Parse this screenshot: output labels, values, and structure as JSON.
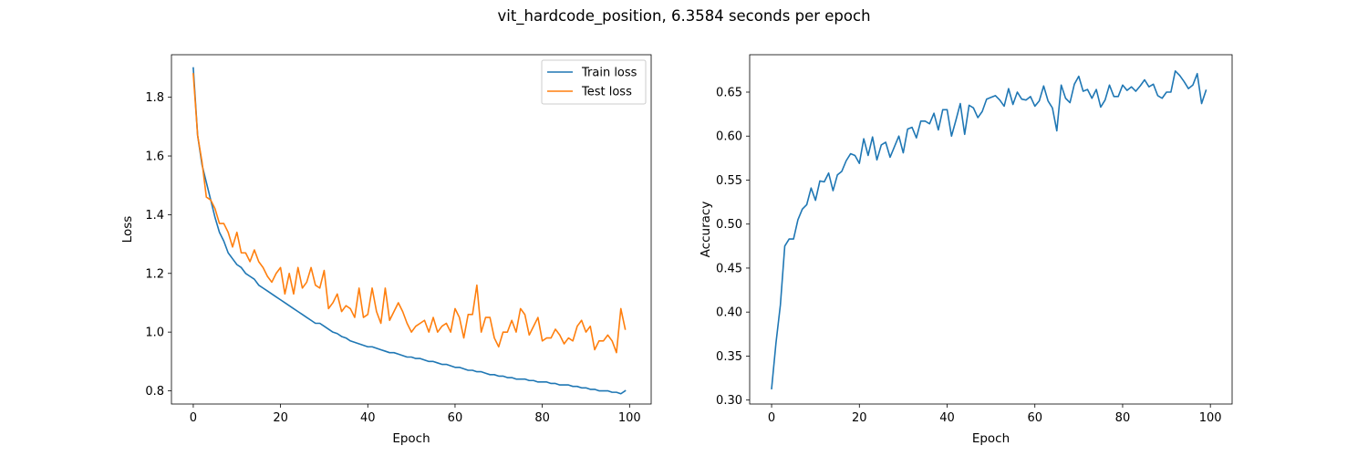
{
  "suptitle": "vit_hardcode_position, 6.3584 seconds per epoch",
  "colors": {
    "train": "#1f77b4",
    "test": "#ff7f0e",
    "acc": "#1f77b4"
  },
  "chart_data": [
    {
      "type": "line",
      "xlabel": "Epoch",
      "ylabel": "Loss",
      "xlim": [
        -5,
        104.95
      ],
      "ylim": [
        0.755,
        1.945
      ],
      "xticks": [
        0,
        20,
        40,
        60,
        80,
        100
      ],
      "yticks": [
        0.8,
        1.0,
        1.2,
        1.4,
        1.6,
        1.8
      ],
      "legend": "top-right",
      "x": [
        0,
        1,
        2,
        3,
        4,
        5,
        6,
        7,
        8,
        9,
        10,
        11,
        12,
        13,
        14,
        15,
        16,
        17,
        18,
        19,
        20,
        21,
        22,
        23,
        24,
        25,
        26,
        27,
        28,
        29,
        30,
        31,
        32,
        33,
        34,
        35,
        36,
        37,
        38,
        39,
        40,
        41,
        42,
        43,
        44,
        45,
        46,
        47,
        48,
        49,
        50,
        51,
        52,
        53,
        54,
        55,
        56,
        57,
        58,
        59,
        60,
        61,
        62,
        63,
        64,
        65,
        66,
        67,
        68,
        69,
        70,
        71,
        72,
        73,
        74,
        75,
        76,
        77,
        78,
        79,
        80,
        81,
        82,
        83,
        84,
        85,
        86,
        87,
        88,
        89,
        90,
        91,
        92,
        93,
        94,
        95,
        96,
        97,
        98,
        99
      ],
      "series": [
        {
          "name": "Train loss",
          "values": [
            1.9,
            1.67,
            1.57,
            1.51,
            1.45,
            1.39,
            1.34,
            1.31,
            1.27,
            1.25,
            1.23,
            1.22,
            1.2,
            1.19,
            1.18,
            1.16,
            1.15,
            1.14,
            1.13,
            1.12,
            1.11,
            1.1,
            1.09,
            1.08,
            1.07,
            1.06,
            1.05,
            1.04,
            1.03,
            1.03,
            1.02,
            1.01,
            1.0,
            0.995,
            0.985,
            0.98,
            0.97,
            0.965,
            0.96,
            0.955,
            0.95,
            0.95,
            0.945,
            0.94,
            0.935,
            0.93,
            0.93,
            0.925,
            0.92,
            0.915,
            0.915,
            0.91,
            0.91,
            0.905,
            0.9,
            0.9,
            0.895,
            0.89,
            0.89,
            0.885,
            0.88,
            0.88,
            0.875,
            0.87,
            0.87,
            0.865,
            0.865,
            0.86,
            0.855,
            0.855,
            0.85,
            0.85,
            0.845,
            0.845,
            0.84,
            0.84,
            0.84,
            0.835,
            0.835,
            0.83,
            0.83,
            0.83,
            0.825,
            0.825,
            0.82,
            0.82,
            0.82,
            0.815,
            0.815,
            0.81,
            0.81,
            0.805,
            0.805,
            0.8,
            0.8,
            0.8,
            0.795,
            0.795,
            0.79,
            0.8
          ]
        },
        {
          "name": "Test loss",
          "values": [
            1.88,
            1.67,
            1.58,
            1.46,
            1.45,
            1.42,
            1.37,
            1.37,
            1.34,
            1.29,
            1.34,
            1.27,
            1.27,
            1.24,
            1.28,
            1.24,
            1.22,
            1.19,
            1.17,
            1.2,
            1.22,
            1.13,
            1.2,
            1.13,
            1.22,
            1.15,
            1.17,
            1.22,
            1.16,
            1.15,
            1.21,
            1.08,
            1.1,
            1.13,
            1.07,
            1.09,
            1.08,
            1.05,
            1.15,
            1.05,
            1.06,
            1.15,
            1.07,
            1.03,
            1.15,
            1.04,
            1.07,
            1.1,
            1.07,
            1.03,
            1.0,
            1.02,
            1.03,
            1.04,
            1.0,
            1.05,
            1.0,
            1.02,
            1.03,
            1.0,
            1.08,
            1.05,
            0.98,
            1.06,
            1.06,
            1.16,
            1.0,
            1.05,
            1.05,
            0.98,
            0.95,
            1.0,
            1.0,
            1.04,
            1.0,
            1.08,
            1.06,
            0.99,
            1.02,
            1.05,
            0.97,
            0.98,
            0.98,
            1.01,
            0.99,
            0.96,
            0.98,
            0.97,
            1.02,
            1.04,
            1.0,
            1.02,
            0.94,
            0.97,
            0.97,
            0.99,
            0.97,
            0.93,
            1.08,
            1.01
          ]
        }
      ]
    },
    {
      "type": "line",
      "xlabel": "Epoch",
      "ylabel": "Accuracy",
      "xlim": [
        -5,
        104.95
      ],
      "ylim": [
        0.2955,
        0.6925
      ],
      "xticks": [
        0,
        20,
        40,
        60,
        80,
        100
      ],
      "yticks": [
        0.3,
        0.35,
        0.4,
        0.45,
        0.5,
        0.55,
        0.6,
        0.65
      ],
      "x": [
        0,
        1,
        2,
        3,
        4,
        5,
        6,
        7,
        8,
        9,
        10,
        11,
        12,
        13,
        14,
        15,
        16,
        17,
        18,
        19,
        20,
        21,
        22,
        23,
        24,
        25,
        26,
        27,
        28,
        29,
        30,
        31,
        32,
        33,
        34,
        35,
        36,
        37,
        38,
        39,
        40,
        41,
        42,
        43,
        44,
        45,
        46,
        47,
        48,
        49,
        50,
        51,
        52,
        53,
        54,
        55,
        56,
        57,
        58,
        59,
        60,
        61,
        62,
        63,
        64,
        65,
        66,
        67,
        68,
        69,
        70,
        71,
        72,
        73,
        74,
        75,
        76,
        77,
        78,
        79,
        80,
        81,
        82,
        83,
        84,
        85,
        86,
        87,
        88,
        89,
        90,
        91,
        92,
        93,
        94,
        95,
        96,
        97,
        98,
        99
      ],
      "series": [
        {
          "values": [
            0.313,
            0.365,
            0.408,
            0.475,
            0.483,
            0.483,
            0.505,
            0.517,
            0.522,
            0.541,
            0.527,
            0.549,
            0.548,
            0.558,
            0.538,
            0.556,
            0.56,
            0.572,
            0.58,
            0.578,
            0.569,
            0.597,
            0.578,
            0.599,
            0.573,
            0.59,
            0.593,
            0.576,
            0.588,
            0.6,
            0.581,
            0.608,
            0.61,
            0.598,
            0.617,
            0.617,
            0.614,
            0.626,
            0.607,
            0.63,
            0.63,
            0.6,
            0.618,
            0.637,
            0.602,
            0.635,
            0.632,
            0.621,
            0.628,
            0.642,
            0.644,
            0.646,
            0.641,
            0.634,
            0.654,
            0.636,
            0.65,
            0.642,
            0.641,
            0.645,
            0.634,
            0.64,
            0.657,
            0.64,
            0.632,
            0.606,
            0.658,
            0.643,
            0.638,
            0.659,
            0.668,
            0.651,
            0.653,
            0.643,
            0.653,
            0.633,
            0.641,
            0.658,
            0.645,
            0.645,
            0.658,
            0.652,
            0.656,
            0.651,
            0.657,
            0.664,
            0.656,
            0.659,
            0.646,
            0.643,
            0.65,
            0.65,
            0.674,
            0.669,
            0.662,
            0.654,
            0.658,
            0.671,
            0.637,
            0.652
          ]
        }
      ]
    }
  ]
}
